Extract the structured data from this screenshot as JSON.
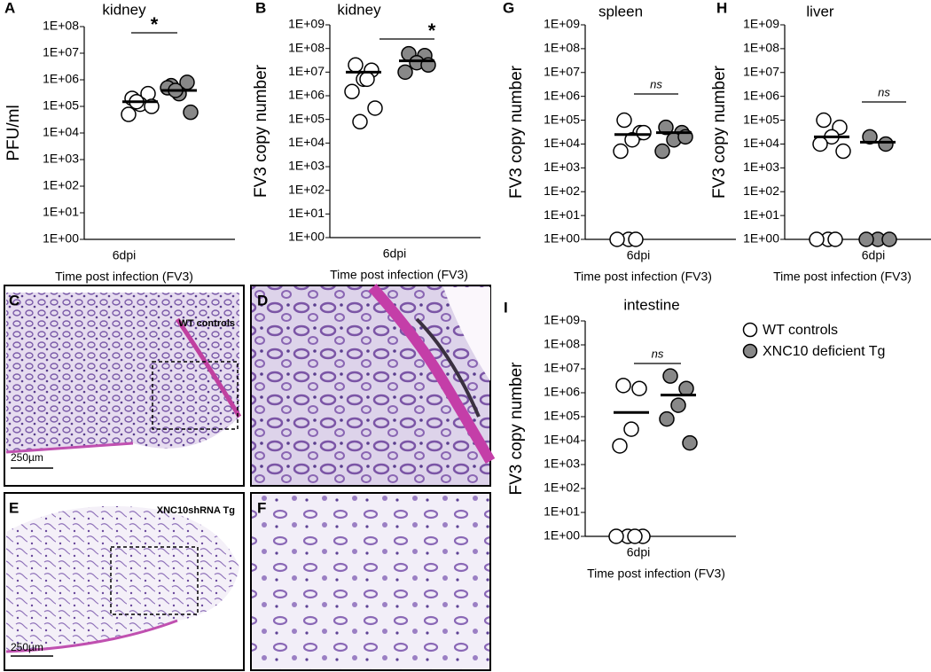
{
  "chart_data": [
    {
      "type": "scatter",
      "panel": "A",
      "title": "kidney",
      "ylabel": "PFU/ml",
      "xlabel": "Time post infection (FV3)",
      "categories": [
        "6dpi"
      ],
      "annotation": "*",
      "log_scale": true,
      "ylim": [
        1,
        100000000
      ],
      "yticks": [
        {
          "value": 1,
          "label": "1E+00"
        },
        {
          "value": 10,
          "label": "1E+01"
        },
        {
          "value": 100,
          "label": "1E+02"
        },
        {
          "value": 1000,
          "label": "1E+03"
        },
        {
          "value": 10000,
          "label": "1E+04"
        },
        {
          "value": 100000,
          "label": "1E+05"
        },
        {
          "value": 1000000,
          "label": "1E+06"
        },
        {
          "value": 10000000,
          "label": "1E+07"
        },
        {
          "value": 100000000,
          "label": "1E+08"
        }
      ],
      "series": [
        {
          "color": "#ffffff",
          "values": [
            200000,
            300000,
            120000,
            50000,
            100000,
            150000
          ],
          "mean": 150000
        },
        {
          "color": "#888888",
          "values": [
            600000,
            800000,
            300000,
            500000,
            60000,
            400000
          ],
          "mean": 400000
        }
      ]
    },
    {
      "type": "scatter",
      "panel": "B",
      "title": "kidney",
      "ylabel": "FV3 copy number",
      "xlabel": "Time post infection (FV3)",
      "categories": [
        "6dpi"
      ],
      "annotation": "*",
      "log_scale": true,
      "ylim": [
        1,
        1000000000
      ],
      "yticks": [
        {
          "value": 1,
          "label": "1E+00"
        },
        {
          "value": 10,
          "label": "1E+01"
        },
        {
          "value": 100,
          "label": "1E+02"
        },
        {
          "value": 1000,
          "label": "1E+03"
        },
        {
          "value": 10000,
          "label": "1E+04"
        },
        {
          "value": 100000,
          "label": "1E+05"
        },
        {
          "value": 1000000,
          "label": "1E+06"
        },
        {
          "value": 10000000,
          "label": "1E+07"
        },
        {
          "value": 100000000,
          "label": "1E+08"
        },
        {
          "value": 1000000000,
          "label": "1E+09"
        }
      ],
      "series": [
        {
          "color": "#ffffff",
          "values": [
            20000000,
            12000000,
            5000000,
            1500000,
            300000,
            80000,
            5000000
          ],
          "mean": 10000000
        },
        {
          "color": "#888888",
          "values": [
            60000000,
            50000000,
            25000000,
            10000000,
            20000000
          ],
          "mean": 30000000
        }
      ]
    },
    {
      "type": "scatter",
      "panel": "G",
      "title": "spleen",
      "ylabel": "FV3 copy number",
      "xlabel": "Time post infection (FV3)",
      "categories": [
        "6dpi"
      ],
      "annotation": "ns",
      "log_scale": true,
      "ylim": [
        1,
        1000000000
      ],
      "yticks": [
        {
          "value": 1,
          "label": "1E+00"
        },
        {
          "value": 10,
          "label": "1E+01"
        },
        {
          "value": 100,
          "label": "1E+02"
        },
        {
          "value": 1000,
          "label": "1E+03"
        },
        {
          "value": 10000,
          "label": "1E+04"
        },
        {
          "value": 100000,
          "label": "1E+05"
        },
        {
          "value": 1000000,
          "label": "1E+06"
        },
        {
          "value": 10000000,
          "label": "1E+07"
        },
        {
          "value": 100000000,
          "label": "1E+08"
        },
        {
          "value": 1000000000,
          "label": "1E+09"
        }
      ],
      "series": [
        {
          "color": "#ffffff",
          "values": [
            100000,
            30000,
            15000,
            5000,
            30000,
            1,
            1,
            1
          ],
          "mean": 25000
        },
        {
          "color": "#888888",
          "values": [
            50000,
            30000,
            15000,
            5000,
            20000
          ],
          "mean": 30000
        }
      ]
    },
    {
      "type": "scatter",
      "panel": "H",
      "title": "liver",
      "ylabel": "FV3 copy number",
      "xlabel": "Time post infection (FV3)",
      "categories": [
        "6dpi"
      ],
      "annotation": "ns",
      "log_scale": true,
      "ylim": [
        1,
        1000000000
      ],
      "yticks": [
        {
          "value": 1,
          "label": "1E+00"
        },
        {
          "value": 10,
          "label": "1E+01"
        },
        {
          "value": 100,
          "label": "1E+02"
        },
        {
          "value": 1000,
          "label": "1E+03"
        },
        {
          "value": 10000,
          "label": "1E+04"
        },
        {
          "value": 100000,
          "label": "1E+05"
        },
        {
          "value": 1000000,
          "label": "1E+06"
        },
        {
          "value": 10000000,
          "label": "1E+07"
        },
        {
          "value": 100000000,
          "label": "1E+08"
        },
        {
          "value": 1000000000,
          "label": "1E+09"
        }
      ],
      "series": [
        {
          "color": "#ffffff",
          "values": [
            100000,
            50000,
            20000,
            10000,
            5000,
            1,
            1,
            1
          ],
          "mean": 20000
        },
        {
          "color": "#888888",
          "values": [
            20000,
            10000,
            1,
            1,
            1
          ],
          "mean": 12000
        }
      ]
    },
    {
      "type": "scatter",
      "panel": "I",
      "title": "intestine",
      "ylabel": "FV3 copy number",
      "xlabel": "Time post infection (FV3)",
      "categories": [
        "6dpi"
      ],
      "annotation": "ns",
      "log_scale": true,
      "ylim": [
        1,
        1000000000
      ],
      "yticks": [
        {
          "value": 1,
          "label": "1E+00"
        },
        {
          "value": 10,
          "label": "1E+01"
        },
        {
          "value": 100,
          "label": "1E+02"
        },
        {
          "value": 1000,
          "label": "1E+03"
        },
        {
          "value": 10000,
          "label": "1E+04"
        },
        {
          "value": 100000,
          "label": "1E+05"
        },
        {
          "value": 1000000,
          "label": "1E+06"
        },
        {
          "value": 10000000,
          "label": "1E+07"
        },
        {
          "value": 100000000,
          "label": "1E+08"
        },
        {
          "value": 1000000000,
          "label": "1E+09"
        }
      ],
      "series": [
        {
          "name": "WT controls",
          "color": "#ffffff",
          "values": [
            2000000,
            1500000,
            30000,
            6000,
            1,
            1,
            1,
            1
          ],
          "mean": 150000
        },
        {
          "name": "XNC10 deficient Tg",
          "color": "#888888",
          "values": [
            5000000,
            1500000,
            300000,
            80000,
            8000
          ],
          "mean": 800000
        }
      ]
    }
  ],
  "images": [
    {
      "panel": "C",
      "label": "WT controls",
      "scale": "250µm"
    },
    {
      "panel": "D"
    },
    {
      "panel": "E",
      "label": "XNC10shRNA Tg",
      "scale": "250µm"
    },
    {
      "panel": "F"
    }
  ]
}
